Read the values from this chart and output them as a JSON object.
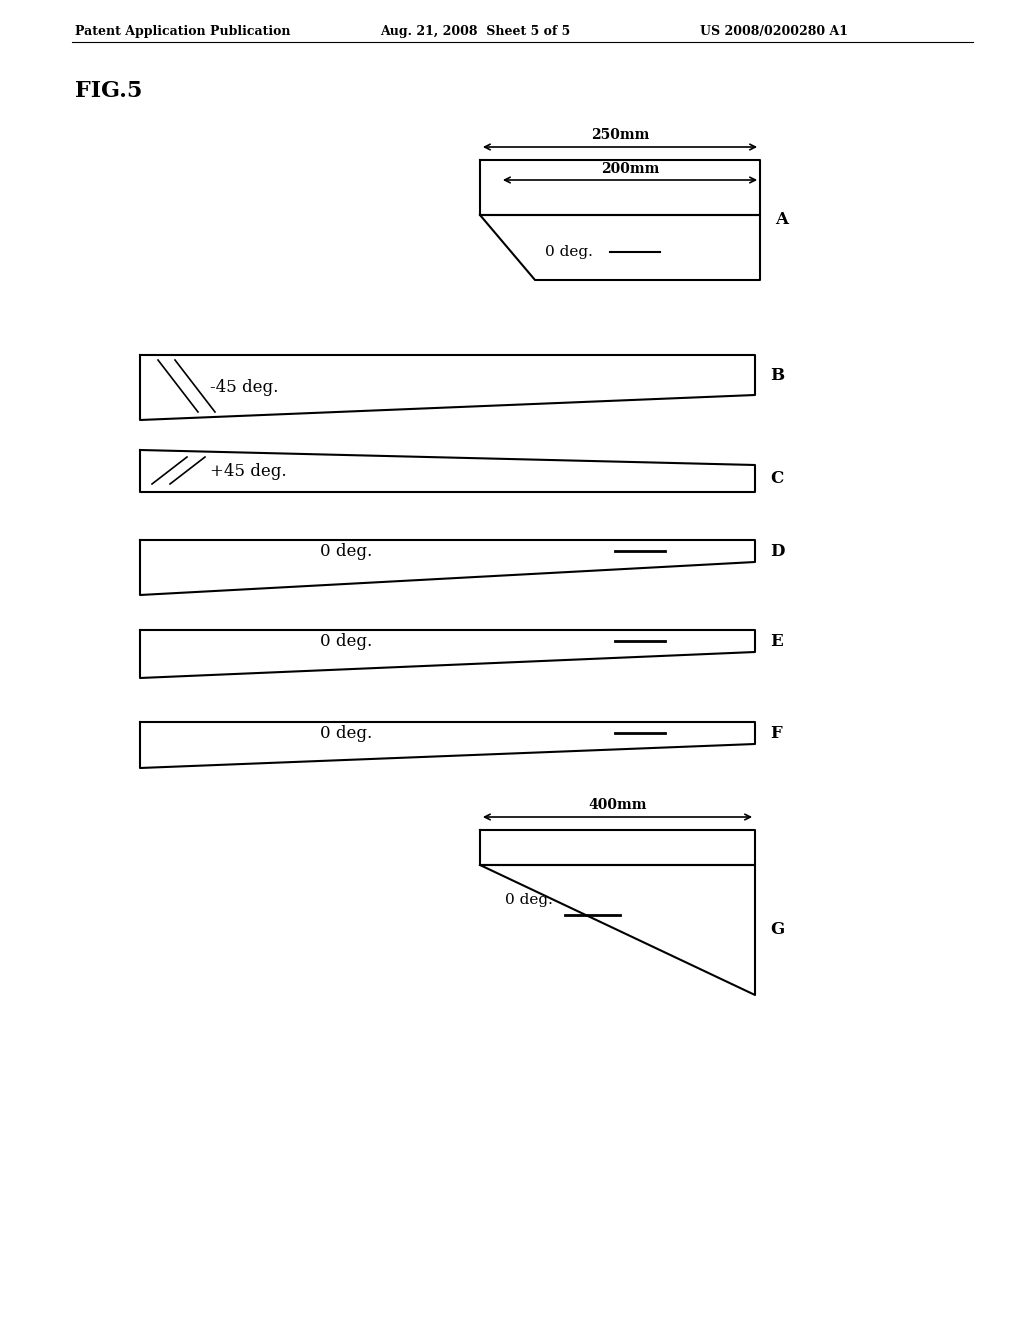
{
  "bg_color": "#ffffff",
  "header_left": "Patent Application Publication",
  "header_mid": "Aug. 21, 2008  Sheet 5 of 5",
  "header_right": "US 2008/0200280 A1",
  "fig_label": "FIG.5",
  "panels": [
    {
      "id": "A",
      "type": "trapezoid_top",
      "label": "0 deg.",
      "dim1": "250mm",
      "dim2": "200mm"
    },
    {
      "id": "B",
      "type": "wedge_rect_bottom",
      "label": "-45 deg.",
      "hatch": "neg45"
    },
    {
      "id": "C",
      "type": "wedge_rect_top",
      "label": "+45 deg.",
      "hatch": "pos45"
    },
    {
      "id": "D",
      "type": "wedge_rect_bottom",
      "label": "0 deg.",
      "hatch": "line"
    },
    {
      "id": "E",
      "type": "wedge_rect_top",
      "label": "0 deg.",
      "hatch": "line"
    },
    {
      "id": "F",
      "type": "wedge_rect_top",
      "label": "0 deg.",
      "hatch": "line"
    },
    {
      "id": "G",
      "type": "triangle_bottom",
      "label": "0 deg.",
      "dim1": "400mm"
    }
  ]
}
